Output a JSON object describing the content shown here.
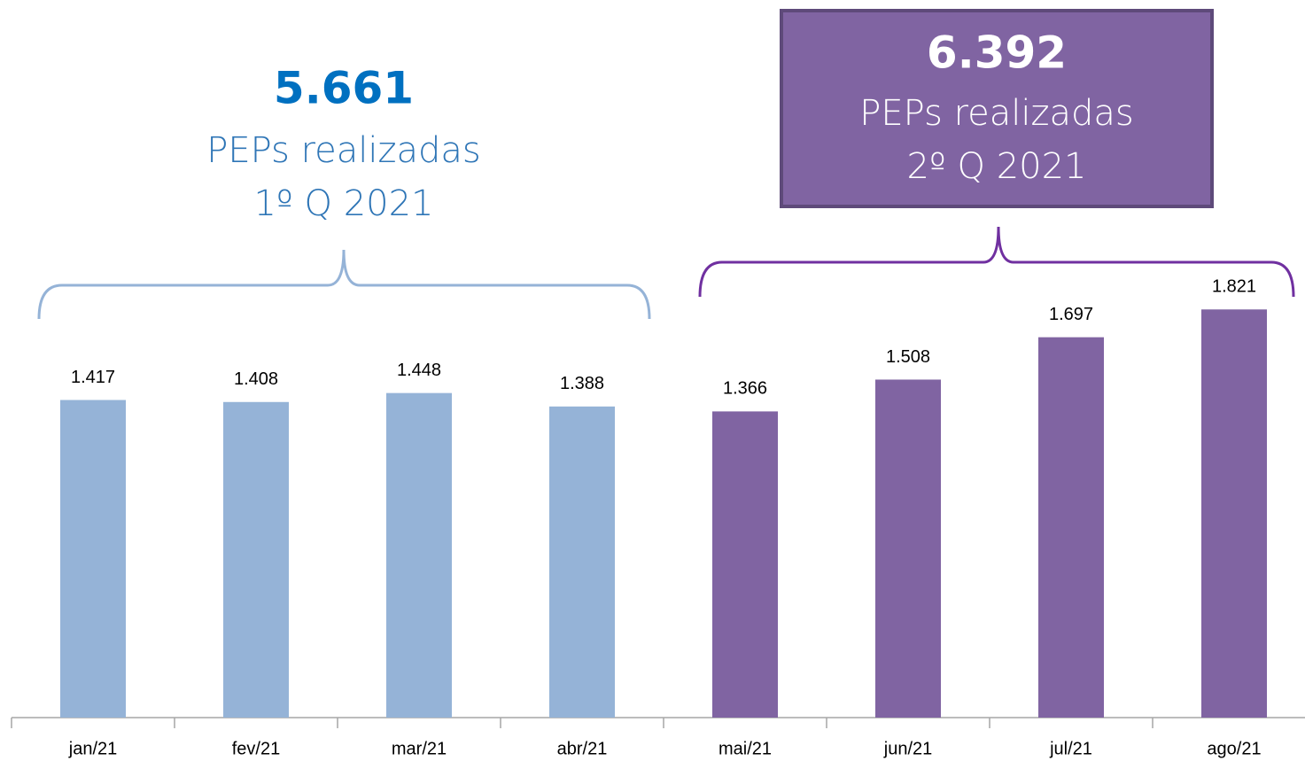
{
  "chart_data": {
    "type": "bar",
    "categories": [
      "jan/21",
      "fev/21",
      "mar/21",
      "abr/21",
      "mai/21",
      "jun/21",
      "jul/21",
      "ago/21"
    ],
    "values": [
      1417,
      1408,
      1448,
      1388,
      1366,
      1508,
      1697,
      1821
    ],
    "value_labels": [
      "1.417",
      "1.408",
      "1.448",
      "1.388",
      "1.366",
      "1.508",
      "1.697",
      "1.821"
    ],
    "colors": [
      "#95b3d7",
      "#95b3d7",
      "#95b3d7",
      "#95b3d7",
      "#8064a2",
      "#8064a2",
      "#8064a2",
      "#8064a2"
    ],
    "ylim": [
      0,
      2000
    ],
    "annotations": [
      {
        "total": "5.661",
        "text": "PEPs realizadas",
        "period": "1º Q 2021"
      },
      {
        "total": "6.392",
        "text": "PEPs realizadas",
        "period": "2º Q 2021"
      }
    ]
  }
}
